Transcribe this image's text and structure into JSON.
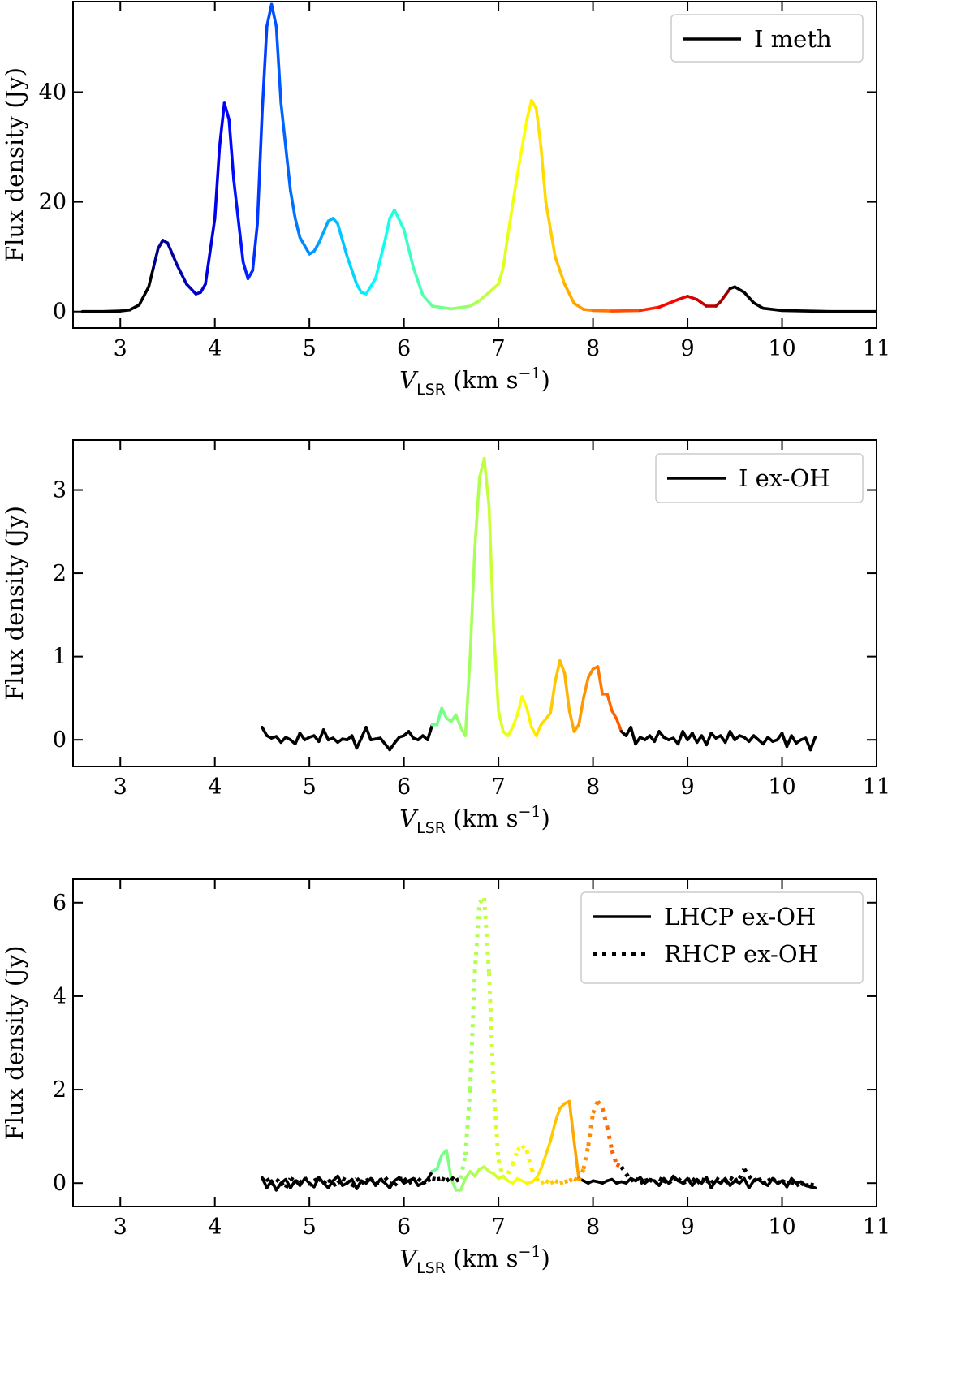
{
  "chart_data": [
    {
      "type": "line",
      "xlabel_main": "V",
      "xlabel_sub": "LSR",
      "xlabel_unit": "(km s",
      "xlabel_sup": "−1",
      "xlabel_close": ")",
      "ylabel": "Flux density (Jy)",
      "xlim": [
        2.5,
        11
      ],
      "ylim": [
        -3,
        56.5
      ],
      "xticks": [
        3,
        4,
        5,
        6,
        7,
        8,
        9,
        10,
        11
      ],
      "yticks": [
        0,
        20,
        40
      ],
      "legend": [
        {
          "label": "I meth",
          "style": "solid"
        }
      ],
      "legend_loc": "top-right",
      "series": [
        {
          "name": "I meth",
          "style": "solid",
          "colored_range": [
            3.35,
            9.45
          ],
          "x": [
            2.6,
            2.8,
            3.0,
            3.1,
            3.2,
            3.3,
            3.35,
            3.4,
            3.45,
            3.5,
            3.6,
            3.7,
            3.8,
            3.85,
            3.9,
            4.0,
            4.05,
            4.1,
            4.15,
            4.2,
            4.3,
            4.35,
            4.4,
            4.45,
            4.5,
            4.55,
            4.6,
            4.65,
            4.7,
            4.8,
            4.85,
            4.9,
            5.0,
            5.05,
            5.1,
            5.2,
            5.25,
            5.3,
            5.4,
            5.5,
            5.55,
            5.6,
            5.7,
            5.8,
            5.85,
            5.9,
            6.0,
            6.1,
            6.2,
            6.3,
            6.5,
            6.7,
            6.8,
            6.9,
            7.0,
            7.05,
            7.1,
            7.2,
            7.3,
            7.35,
            7.4,
            7.45,
            7.5,
            7.6,
            7.7,
            7.8,
            7.9,
            8.0,
            8.2,
            8.5,
            8.7,
            8.9,
            9.0,
            9.1,
            9.2,
            9.3,
            9.35,
            9.4,
            9.45,
            9.5,
            9.6,
            9.7,
            9.8,
            10.0,
            10.5,
            11.0
          ],
          "y": [
            0.0,
            0.0,
            0.1,
            0.3,
            1.2,
            4.5,
            8.0,
            11.5,
            13.0,
            12.5,
            8.5,
            5.0,
            3.2,
            3.5,
            5.0,
            17.0,
            30.0,
            38.0,
            35.0,
            24.0,
            9.0,
            6.0,
            7.5,
            16.0,
            36.0,
            52.0,
            56.0,
            52.0,
            38.0,
            22.0,
            17.0,
            13.5,
            10.5,
            11.0,
            12.5,
            16.5,
            17.0,
            16.0,
            10.0,
            5.0,
            3.5,
            3.2,
            6.0,
            13.0,
            17.0,
            18.5,
            15.0,
            8.0,
            3.0,
            1.0,
            0.5,
            1.0,
            2.0,
            3.5,
            5.0,
            8.0,
            14.0,
            25.0,
            35.0,
            38.5,
            37.0,
            30.0,
            20.0,
            10.0,
            5.0,
            1.5,
            0.4,
            0.2,
            0.1,
            0.2,
            0.8,
            2.2,
            2.8,
            2.2,
            1.0,
            1.0,
            1.8,
            3.0,
            4.2,
            4.5,
            3.5,
            1.6,
            0.6,
            0.2,
            0.0,
            0.0
          ]
        }
      ]
    },
    {
      "type": "line",
      "xlabel_main": "V",
      "xlabel_sub": "LSR",
      "xlabel_unit": "(km s",
      "xlabel_sup": "−1",
      "xlabel_close": ")",
      "ylabel": "Flux density (Jy)",
      "xlim": [
        2.5,
        11
      ],
      "ylim": [
        -0.32,
        3.6
      ],
      "xticks": [
        3,
        4,
        5,
        6,
        7,
        8,
        9,
        10,
        11
      ],
      "yticks": [
        0,
        1,
        2,
        3
      ],
      "legend": [
        {
          "label": "I ex-OH",
          "style": "solid"
        }
      ],
      "legend_loc": "top-right",
      "series": [
        {
          "name": "I ex-OH",
          "style": "solid",
          "colored_range": [
            6.3,
            8.3
          ],
          "x": [
            4.5,
            4.55,
            4.6,
            4.65,
            4.7,
            4.75,
            4.8,
            4.85,
            4.9,
            4.95,
            5.0,
            5.05,
            5.1,
            5.15,
            5.2,
            5.25,
            5.3,
            5.35,
            5.4,
            5.45,
            5.5,
            5.55,
            5.6,
            5.65,
            5.7,
            5.75,
            5.8,
            5.85,
            5.9,
            5.95,
            6.0,
            6.05,
            6.1,
            6.15,
            6.2,
            6.25,
            6.3,
            6.35,
            6.4,
            6.45,
            6.5,
            6.55,
            6.6,
            6.65,
            6.7,
            6.75,
            6.8,
            6.85,
            6.9,
            6.95,
            7.0,
            7.05,
            7.1,
            7.15,
            7.2,
            7.25,
            7.3,
            7.35,
            7.4,
            7.45,
            7.5,
            7.55,
            7.6,
            7.65,
            7.7,
            7.75,
            7.8,
            7.85,
            7.9,
            7.95,
            8.0,
            8.05,
            8.1,
            8.15,
            8.2,
            8.25,
            8.3,
            8.35,
            8.4,
            8.45,
            8.5,
            8.55,
            8.6,
            8.65,
            8.7,
            8.75,
            8.8,
            8.85,
            8.9,
            8.95,
            9.0,
            9.05,
            9.1,
            9.15,
            9.2,
            9.25,
            9.3,
            9.35,
            9.4,
            9.45,
            9.5,
            9.55,
            9.6,
            9.65,
            9.7,
            9.75,
            9.8,
            9.85,
            9.9,
            9.95,
            10.0,
            10.05,
            10.1,
            10.15,
            10.2,
            10.25,
            10.3,
            10.35
          ],
          "y": [
            0.15,
            0.05,
            0.02,
            0.04,
            -0.03,
            0.03,
            0.0,
            -0.05,
            0.08,
            0.0,
            0.03,
            0.05,
            -0.02,
            0.12,
            0.0,
            0.02,
            -0.03,
            0.01,
            0.0,
            0.05,
            -0.1,
            0.02,
            0.15,
            0.0,
            0.01,
            0.02,
            -0.05,
            -0.12,
            -0.04,
            0.03,
            0.05,
            0.1,
            0.02,
            0.0,
            0.05,
            0.0,
            0.18,
            0.18,
            0.38,
            0.26,
            0.22,
            0.3,
            0.15,
            0.05,
            1.0,
            2.3,
            3.15,
            3.38,
            2.8,
            1.3,
            0.35,
            0.1,
            0.05,
            0.15,
            0.3,
            0.52,
            0.38,
            0.15,
            0.05,
            0.18,
            0.25,
            0.32,
            0.7,
            0.95,
            0.8,
            0.35,
            0.1,
            0.18,
            0.5,
            0.75,
            0.85,
            0.88,
            0.55,
            0.55,
            0.35,
            0.25,
            0.1,
            0.05,
            0.15,
            -0.05,
            0.03,
            0.0,
            0.05,
            -0.02,
            0.1,
            0.03,
            0.0,
            0.02,
            -0.05,
            0.1,
            0.0,
            0.08,
            -0.03,
            0.05,
            -0.06,
            0.08,
            0.02,
            0.05,
            -0.03,
            0.1,
            0.0,
            0.05,
            0.03,
            -0.02,
            0.05,
            0.0,
            -0.05,
            0.03,
            -0.02,
            0.0,
            0.08,
            -0.08,
            0.05,
            -0.04,
            0.0,
            0.02,
            -0.12,
            0.03
          ]
        }
      ]
    },
    {
      "type": "line",
      "xlabel_main": "V",
      "xlabel_sub": "LSR",
      "xlabel_unit": "(km s",
      "xlabel_sup": "−1",
      "xlabel_close": ")",
      "ylabel": "Flux density (Jy)",
      "xlim": [
        2.5,
        11
      ],
      "ylim": [
        -0.5,
        6.5
      ],
      "xticks": [
        3,
        4,
        5,
        6,
        7,
        8,
        9,
        10,
        11
      ],
      "yticks": [
        0,
        2,
        4,
        6
      ],
      "legend": [
        {
          "label": "LHCP ex-OH",
          "style": "solid"
        },
        {
          "label": "RHCP ex-OH",
          "style": "dotted"
        }
      ],
      "legend_loc": "top-right",
      "series": [
        {
          "name": "LHCP ex-OH",
          "style": "solid",
          "colored_range": [
            6.3,
            7.85
          ],
          "x": [
            4.5,
            4.55,
            4.6,
            4.65,
            4.7,
            4.75,
            4.8,
            4.85,
            4.9,
            4.95,
            5.0,
            5.05,
            5.1,
            5.15,
            5.2,
            5.25,
            5.3,
            5.35,
            5.4,
            5.45,
            5.5,
            5.55,
            5.6,
            5.65,
            5.7,
            5.75,
            5.8,
            5.85,
            5.9,
            5.95,
            6.0,
            6.05,
            6.1,
            6.15,
            6.2,
            6.25,
            6.3,
            6.35,
            6.4,
            6.45,
            6.5,
            6.55,
            6.6,
            6.65,
            6.7,
            6.75,
            6.8,
            6.85,
            6.9,
            6.95,
            7.0,
            7.05,
            7.1,
            7.15,
            7.2,
            7.25,
            7.3,
            7.35,
            7.4,
            7.45,
            7.5,
            7.55,
            7.6,
            7.65,
            7.7,
            7.75,
            7.8,
            7.85,
            7.9,
            7.95,
            8.0,
            8.05,
            8.1,
            8.15,
            8.2,
            8.25,
            8.3,
            8.35,
            8.4,
            8.45,
            8.5,
            8.55,
            8.6,
            8.65,
            8.7,
            8.75,
            8.8,
            8.85,
            8.9,
            8.95,
            9.0,
            9.05,
            9.1,
            9.15,
            9.2,
            9.25,
            9.3,
            9.35,
            9.4,
            9.45,
            9.5,
            9.55,
            9.6,
            9.65,
            9.7,
            9.75,
            9.8,
            9.85,
            9.9,
            9.95,
            10.0,
            10.05,
            10.1,
            10.15,
            10.2,
            10.25,
            10.3,
            10.35
          ],
          "y": [
            0.12,
            -0.1,
            0.05,
            -0.15,
            0.0,
            0.08,
            -0.1,
            0.05,
            -0.05,
            0.1,
            0.0,
            -0.08,
            0.12,
            0.0,
            -0.1,
            0.05,
            0.15,
            -0.05,
            0.0,
            0.08,
            -0.12,
            0.05,
            0.0,
            0.1,
            -0.05,
            0.08,
            0.0,
            -0.1,
            0.05,
            0.12,
            0.0,
            0.05,
            0.1,
            -0.05,
            0.0,
            0.08,
            0.25,
            0.3,
            0.6,
            0.7,
            0.1,
            -0.15,
            -0.15,
            0.1,
            0.25,
            0.15,
            0.3,
            0.35,
            0.25,
            0.2,
            0.1,
            0.15,
            0.05,
            0.0,
            0.1,
            0.05,
            0.0,
            0.02,
            0.1,
            0.3,
            0.6,
            0.9,
            1.3,
            1.6,
            1.7,
            1.75,
            0.9,
            0.1,
            0.05,
            0.0,
            0.05,
            0.03,
            0.0,
            0.05,
            0.08,
            0.0,
            0.03,
            0.0,
            0.1,
            0.05,
            0.12,
            0.0,
            0.08,
            0.05,
            -0.05,
            0.1,
            0.0,
            0.15,
            0.05,
            0.0,
            0.1,
            -0.05,
            0.08,
            0.0,
            0.12,
            -0.1,
            0.05,
            0.0,
            0.1,
            -0.05,
            0.05,
            0.0,
            0.1,
            -0.1,
            0.05,
            0.08,
            0.0,
            -0.05,
            0.1,
            0.0,
            0.05,
            -0.08,
            0.1,
            0.0,
            0.03,
            -0.05,
            -0.08,
            -0.1
          ]
        },
        {
          "name": "RHCP ex-OH",
          "style": "dotted",
          "colored_range": [
            6.6,
            8.3
          ],
          "x": [
            4.5,
            4.55,
            4.6,
            4.65,
            4.7,
            4.75,
            4.8,
            4.85,
            4.9,
            4.95,
            5.0,
            5.05,
            5.1,
            5.15,
            5.2,
            5.25,
            5.3,
            5.35,
            5.4,
            5.45,
            5.5,
            5.55,
            5.6,
            5.65,
            5.7,
            5.75,
            5.8,
            5.85,
            5.9,
            5.95,
            6.0,
            6.05,
            6.1,
            6.15,
            6.2,
            6.25,
            6.3,
            6.35,
            6.4,
            6.45,
            6.5,
            6.55,
            6.6,
            6.65,
            6.7,
            6.75,
            6.8,
            6.85,
            6.9,
            6.95,
            7.0,
            7.05,
            7.1,
            7.15,
            7.2,
            7.25,
            7.3,
            7.35,
            7.4,
            7.45,
            7.5,
            7.55,
            7.6,
            7.65,
            7.7,
            7.75,
            7.8,
            7.85,
            7.9,
            7.95,
            8.0,
            8.05,
            8.1,
            8.15,
            8.2,
            8.25,
            8.3,
            8.35,
            8.4,
            8.45,
            8.5,
            8.55,
            8.6,
            8.65,
            8.7,
            8.75,
            8.8,
            8.85,
            8.9,
            8.95,
            9.0,
            9.05,
            9.1,
            9.15,
            9.2,
            9.25,
            9.3,
            9.35,
            9.4,
            9.45,
            9.5,
            9.55,
            9.6,
            9.65,
            9.7,
            9.75,
            9.8,
            9.85,
            9.9,
            9.95,
            10.0,
            10.05,
            10.1,
            10.15,
            10.2,
            10.25,
            10.3,
            10.35
          ],
          "y": [
            0.05,
            0.1,
            -0.05,
            0.08,
            0.0,
            -0.1,
            0.1,
            0.05,
            0.0,
            0.12,
            -0.05,
            0.05,
            0.1,
            0.0,
            0.08,
            -0.05,
            0.0,
            0.1,
            0.05,
            -0.08,
            0.1,
            0.0,
            0.05,
            0.1,
            -0.03,
            0.05,
            0.12,
            0.0,
            -0.05,
            0.08,
            0.1,
            0.0,
            0.05,
            0.1,
            0.0,
            0.05,
            0.1,
            0.08,
            0.1,
            0.05,
            0.12,
            0.05,
            0.1,
            0.6,
            2.0,
            4.5,
            6.0,
            6.1,
            4.5,
            2.0,
            0.5,
            0.1,
            0.2,
            0.4,
            0.7,
            0.8,
            0.7,
            0.3,
            0.1,
            0.0,
            0.05,
            0.0,
            0.05,
            0.0,
            0.03,
            0.05,
            0.1,
            0.05,
            0.3,
            0.8,
            1.5,
            1.75,
            1.6,
            1.2,
            0.7,
            0.4,
            0.35,
            0.2,
            0.05,
            0.1,
            0.0,
            0.05,
            0.08,
            0.0,
            0.1,
            0.05,
            0.0,
            0.08,
            0.1,
            0.0,
            0.05,
            0.1,
            0.0,
            0.08,
            0.05,
            0.0,
            0.1,
            0.05,
            0.0,
            0.12,
            0.05,
            0.1,
            0.3,
            0.15,
            0.05,
            0.1,
            0.0,
            0.05,
            0.1,
            0.0,
            0.05,
            0.0,
            0.03,
            -0.05,
            0.0,
            -0.05,
            -0.03,
            -0.05
          ]
        }
      ]
    }
  ]
}
